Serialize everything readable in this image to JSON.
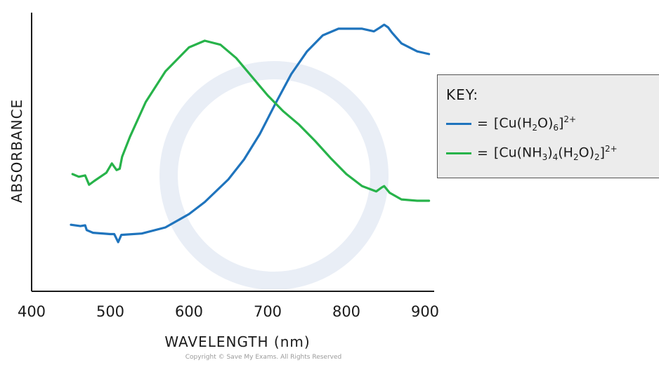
{
  "chart_data": {
    "type": "line",
    "xlabel": "WAVELENGTH (nm)",
    "ylabel": "ABSORBANCE",
    "xlim": [
      400,
      920
    ],
    "ylim": [
      0,
      1
    ],
    "x_ticks": [
      "400",
      "500",
      "600",
      "700",
      "800",
      "900"
    ],
    "grid": false,
    "legend_position": "right",
    "series": [
      {
        "name": "[Cu(H2O)6]2+",
        "color": "#1f74bd",
        "points": [
          [
            450,
            0.21
          ],
          [
            462,
            0.205
          ],
          [
            468,
            0.208
          ],
          [
            470,
            0.19
          ],
          [
            478,
            0.18
          ],
          [
            500,
            0.175
          ],
          [
            505,
            0.175
          ],
          [
            510,
            0.145
          ],
          [
            514,
            0.172
          ],
          [
            540,
            0.177
          ],
          [
            570,
            0.2
          ],
          [
            600,
            0.25
          ],
          [
            620,
            0.295
          ],
          [
            650,
            0.38
          ],
          [
            670,
            0.455
          ],
          [
            690,
            0.55
          ],
          [
            710,
            0.665
          ],
          [
            730,
            0.775
          ],
          [
            750,
            0.86
          ],
          [
            770,
            0.92
          ],
          [
            790,
            0.945
          ],
          [
            820,
            0.945
          ],
          [
            835,
            0.935
          ],
          [
            843,
            0.95
          ],
          [
            848,
            0.96
          ],
          [
            853,
            0.95
          ],
          [
            858,
            0.93
          ],
          [
            870,
            0.89
          ],
          [
            890,
            0.86
          ],
          [
            905,
            0.85
          ]
        ]
      },
      {
        "name": "[Cu(NH3)4(H2O)2]2+",
        "color": "#27b34a",
        "points": [
          [
            452,
            0.4
          ],
          [
            460,
            0.39
          ],
          [
            468,
            0.395
          ],
          [
            473,
            0.36
          ],
          [
            480,
            0.375
          ],
          [
            495,
            0.405
          ],
          [
            502,
            0.44
          ],
          [
            508,
            0.415
          ],
          [
            512,
            0.42
          ],
          [
            515,
            0.465
          ],
          [
            525,
            0.54
          ],
          [
            545,
            0.67
          ],
          [
            570,
            0.785
          ],
          [
            600,
            0.875
          ],
          [
            620,
            0.9
          ],
          [
            640,
            0.885
          ],
          [
            660,
            0.835
          ],
          [
            680,
            0.765
          ],
          [
            700,
            0.695
          ],
          [
            720,
            0.635
          ],
          [
            740,
            0.585
          ],
          [
            760,
            0.525
          ],
          [
            780,
            0.46
          ],
          [
            800,
            0.4
          ],
          [
            820,
            0.355
          ],
          [
            838,
            0.335
          ],
          [
            845,
            0.35
          ],
          [
            848,
            0.355
          ],
          [
            855,
            0.33
          ],
          [
            870,
            0.305
          ],
          [
            890,
            0.3
          ],
          [
            905,
            0.3
          ]
        ]
      }
    ]
  },
  "key": {
    "title": "KEY:",
    "entries": [
      {
        "color": "#1f74bd",
        "eq": "=",
        "formula": "[Cu(H<sub>2</sub>O)<sub>6</sub>]<sup>2+</sup>"
      },
      {
        "color": "#27b34a",
        "eq": "=",
        "formula": "[Cu(NH<sub>3</sub>)<sub>4</sub>(H<sub>2</sub>O)<sub>2</sub>]<sup>2+</sup>"
      }
    ]
  },
  "copyright": "Copyright © Save My Exams. All Rights Reserved"
}
